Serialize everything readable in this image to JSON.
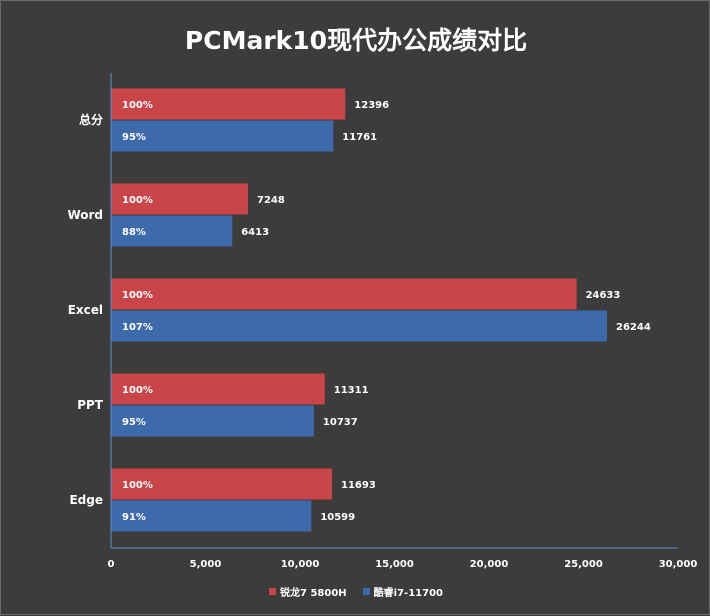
{
  "chart_data": {
    "type": "bar",
    "orientation": "horizontal",
    "title": "PCMark10现代办公成绩对比",
    "categories": [
      "总分",
      "Word",
      "Excel",
      "PPT",
      "Edge"
    ],
    "series": [
      {
        "name": "锐龙7 5800H",
        "color": "#c9454a",
        "values": [
          12396,
          7248,
          24633,
          11311,
          11693
        ],
        "percent_labels": [
          "100%",
          "100%",
          "100%",
          "100%",
          "100%"
        ]
      },
      {
        "name": "酷睿i7-11700",
        "color": "#3d6aab",
        "values": [
          11761,
          6413,
          26244,
          10737,
          10599
        ],
        "percent_labels": [
          "95%",
          "88%",
          "107%",
          "95%",
          "91%"
        ]
      }
    ],
    "xlim": [
      0,
      30000
    ],
    "xticks": [
      0,
      5000,
      10000,
      15000,
      20000,
      25000,
      30000
    ],
    "xtick_labels": [
      "0",
      "5,000",
      "10,000",
      "15,000",
      "20,000",
      "25,000",
      "30,000"
    ],
    "grid": false,
    "legend_position": "bottom",
    "axis_color": "#5b8fd0"
  }
}
